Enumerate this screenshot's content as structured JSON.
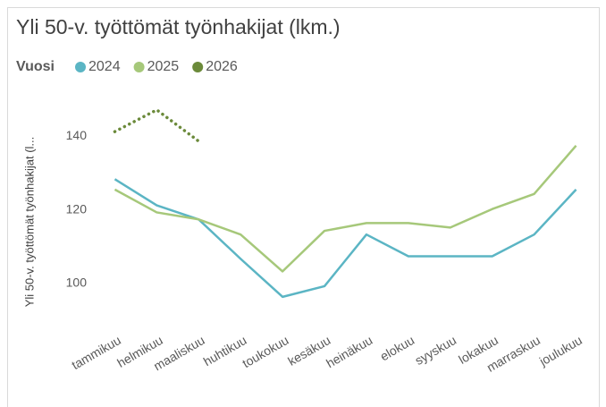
{
  "chart_data": {
    "type": "line",
    "title": "Yli 50-v. työttömät työnhakijat (lkm.)",
    "legend_title": "Vuosi",
    "y_label": "Yli 50-v. työttömät työnhakijat (l...",
    "categories": [
      "tammikuu",
      "helmikuu",
      "maaliskuu",
      "huhtikuu",
      "toukokuu",
      "kesäkuu",
      "heinäkuu",
      "elokuu",
      "syyskuu",
      "lokakuu",
      "marraskuu",
      "joulukuu"
    ],
    "series": [
      {
        "name": "2024",
        "color": "#5bb5c4",
        "line_style": "solid",
        "values": [
          128.3,
          121.2,
          117.4,
          106.7,
          96.4,
          99.3,
          113.3,
          107.4,
          107.4,
          107.4,
          113.3,
          125.5
        ]
      },
      {
        "name": "2025",
        "color": "#a6c87a",
        "line_style": "solid",
        "values": [
          125.5,
          119.3,
          117.4,
          113.3,
          103.3,
          114.3,
          116.4,
          116.4,
          115.2,
          120.2,
          124.3,
          137.4
        ]
      },
      {
        "name": "2026",
        "color": "#6b8a3a",
        "line_style": "dotted",
        "values": [
          141.2,
          147.1,
          138.6,
          null,
          null,
          null,
          null,
          null,
          null,
          null,
          null,
          null
        ]
      }
    ],
    "ylim": [
      92,
      149
    ],
    "yticks": [
      100,
      120,
      140
    ],
    "grid": false,
    "legend_position": "top"
  }
}
